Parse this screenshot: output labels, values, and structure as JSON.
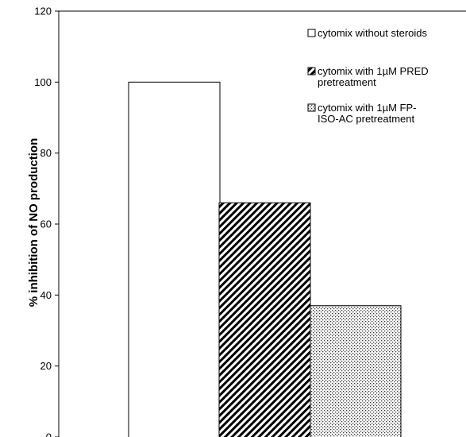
{
  "chart_data": {
    "type": "bar",
    "title": "",
    "xlabel": "",
    "ylabel": "% inhibition of NO production",
    "ylim": [
      0,
      120
    ],
    "yticks": [
      "0",
      "20",
      "40",
      "60",
      "80",
      "100",
      "120"
    ],
    "categories": [
      "cytomix without steroids",
      "cytomix with 1µM PRED pretreatment",
      "cytomix with 1µM FP-ISO-AC pretreatment"
    ],
    "values": [
      100,
      66,
      37
    ],
    "legend_position": "top-right",
    "grid": false,
    "series": [
      {
        "name_lines": [
          "cytomix without steroids"
        ],
        "value": 100,
        "fill": "white",
        "color": "#ffffff"
      },
      {
        "name_lines": [
          "cytomix with 1µM PRED",
          "pretreatment"
        ],
        "value": 66,
        "fill": "diagonal-hatch",
        "color": "#000000"
      },
      {
        "name_lines": [
          "cytomix with 1µM FP-",
          "ISO-AC pretreatment"
        ],
        "value": 37,
        "fill": "dotted",
        "color": "#555555"
      }
    ]
  }
}
